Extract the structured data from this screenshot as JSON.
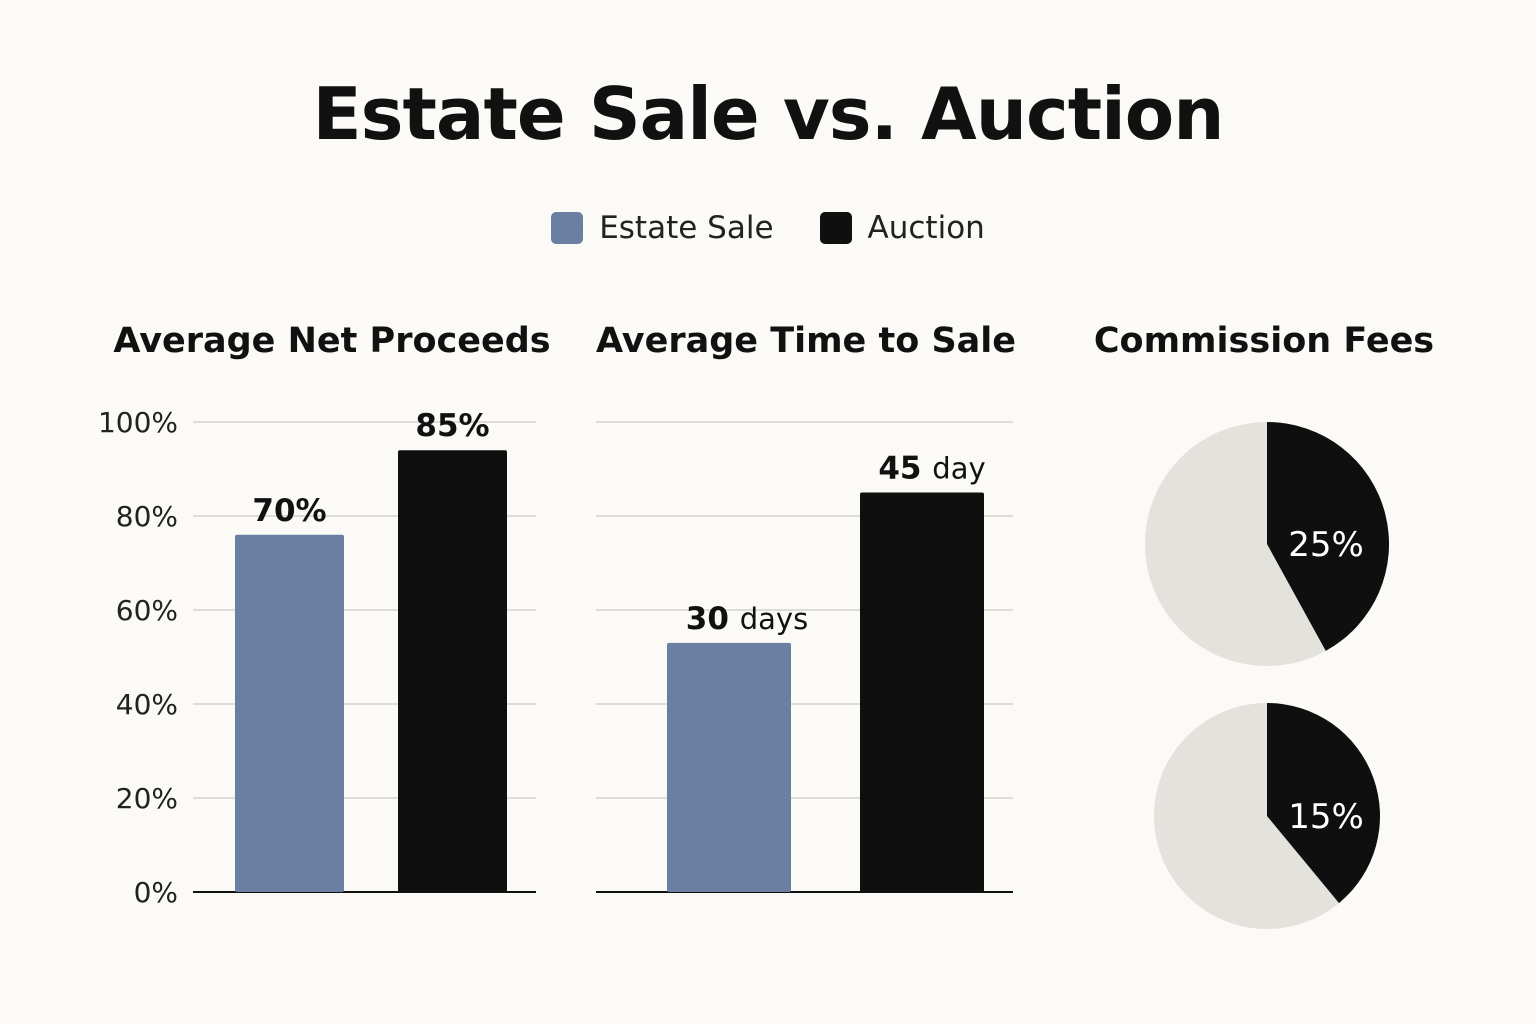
{
  "title": "Estate Sale vs. Auction",
  "legend": [
    {
      "label": "Estate Sale",
      "color": "#6a7fa1"
    },
    {
      "label": "Auction",
      "color": "#0f0f0f"
    }
  ],
  "colors": {
    "estate_sale": "#6a7fa1",
    "auction": "#0f0f0f",
    "pie_rest": "#e3e2dd",
    "grid": "#dddcd6",
    "baseline": "#111111"
  },
  "chart_data": [
    {
      "type": "bar",
      "title": "Average Net Proceeds",
      "categories": [
        "Estate Sale",
        "Auction"
      ],
      "values": [
        70,
        85
      ],
      "value_labels": [
        "70%",
        "85%"
      ],
      "bar_heights_pct": [
        76,
        94
      ],
      "ylim": [
        0,
        100
      ],
      "yticks": [
        0,
        20,
        40,
        60,
        80,
        100
      ],
      "ytick_labels": [
        "0%",
        "20%",
        "40%",
        "60%",
        "80%",
        "100%"
      ],
      "grid": true
    },
    {
      "type": "bar",
      "title": "Average Time to Sale",
      "categories": [
        "Estate Sale",
        "Auction"
      ],
      "values": [
        30,
        45
      ],
      "value_labels": [
        {
          "number": "30",
          "unit": "days"
        },
        {
          "number": "45",
          "unit": "day"
        }
      ],
      "bar_heights_pct": [
        53,
        85
      ],
      "ylim": [
        0,
        100
      ],
      "grid": true
    },
    {
      "type": "pie",
      "title": "Commission Fees",
      "pies": [
        {
          "slice_value": 25,
          "label": "25%",
          "drawn_fraction": 0.42
        },
        {
          "slice_value": 15,
          "label": "15%",
          "drawn_fraction": 0.39
        }
      ]
    }
  ]
}
